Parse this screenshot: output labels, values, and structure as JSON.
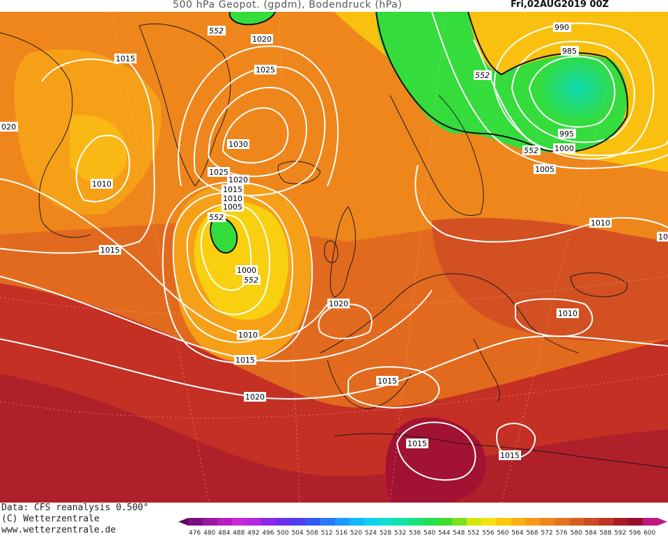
{
  "header": {
    "title": "500 hPa Geopot. (gpdm), Bodendruck (hPa)",
    "date": "Fri,02AUG2019 00Z"
  },
  "footer": {
    "line1": "Data: CFS reanalysis 0.500°",
    "line2": "(C) Wetterzentrale",
    "line3": "www.wetterzentrale.de"
  },
  "colorbar": {
    "ticks": [
      "476",
      "480",
      "484",
      "488",
      "492",
      "496",
      "500",
      "504",
      "508",
      "512",
      "516",
      "520",
      "524",
      "528",
      "532",
      "536",
      "540",
      "544",
      "548",
      "552",
      "556",
      "560",
      "564",
      "568",
      "572",
      "576",
      "580",
      "584",
      "588",
      "592",
      "596",
      "600"
    ],
    "colors": [
      "#5a0a5a",
      "#7a1080",
      "#9a18a0",
      "#b420c0",
      "#c828d8",
      "#b028e0",
      "#8c28e8",
      "#6a30ee",
      "#4a40f0",
      "#3458f4",
      "#2878f8",
      "#1e98fa",
      "#14b8fc",
      "#10d0f0",
      "#10e0d0",
      "#10e4a8",
      "#18e47c",
      "#24e050",
      "#40dc30",
      "#7ce020",
      "#d4e810",
      "#fae010",
      "#fcc808",
      "#fab010",
      "#f69a16",
      "#ee861c",
      "#e4721e",
      "#d85e20",
      "#cc4a22",
      "#bc3424",
      "#a81c28",
      "#941030",
      "#c01880"
    ],
    "accent": "#22dd44"
  },
  "contour_labels": {
    "p1020_top": "1020",
    "p1025_top": "1025",
    "p1030": "1030",
    "p1025_mid": "1025",
    "p1020_mid": "1020",
    "p1015_low": "1015",
    "p1010_low": "1010",
    "p1005_low": "1005",
    "p1000_low": "1000",
    "g552_low1": "552",
    "g552_low2": "552",
    "g552_top": "552",
    "p1015_tl": "1015",
    "p1010_west": "1010",
    "p020_edge": "020",
    "p1015_west": "1015",
    "p1010_south": "1010",
    "p1015_south": "1015",
    "p1020_south": "1020",
    "p1020_bay": "1020",
    "p1015_med": "1015",
    "p1015_africa": "1015",
    "p1015_africa2": "1015",
    "p990": "990",
    "p985": "985",
    "g552_ne": "552",
    "p995": "995",
    "p1000_ne": "1000",
    "g552_ne2": "552",
    "p1005_ne": "1005",
    "p1010_east": "1010",
    "p1010_se": "1010",
    "p_edge_e": "10"
  }
}
